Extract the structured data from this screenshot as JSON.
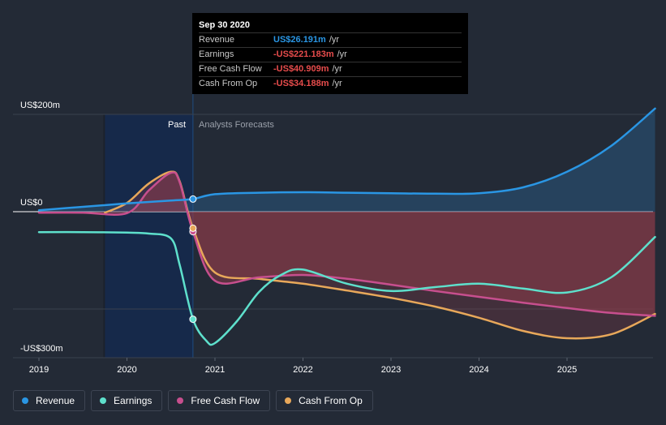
{
  "tooltip": {
    "date": "Sep 30 2020",
    "rows": [
      {
        "label": "Revenue",
        "value": "US$26.191m",
        "unit": "/yr",
        "color": "#2a96e4"
      },
      {
        "label": "Earnings",
        "value": "-US$221.183m",
        "unit": "/yr",
        "color": "#e74c4c"
      },
      {
        "label": "Free Cash Flow",
        "value": "-US$40.909m",
        "unit": "/yr",
        "color": "#e74c4c"
      },
      {
        "label": "Cash From Op",
        "value": "-US$34.188m",
        "unit": "/yr",
        "color": "#e74c4c"
      }
    ]
  },
  "chart_data": {
    "type": "line",
    "y_axis_labels": {
      "top": "US$200m",
      "zero": "US$0",
      "bottom": "-US$300m"
    },
    "ylim": [
      -300,
      200
    ],
    "xlim": [
      2019,
      2026
    ],
    "x_ticks": [
      "2019",
      "2020",
      "2021",
      "2022",
      "2023",
      "2024",
      "2025"
    ],
    "periods": {
      "past": "Past",
      "forecast": "Analysts Forecasts",
      "divider_x": 2020.75
    },
    "series": [
      {
        "name": "Revenue",
        "color": "#2a96e4",
        "x": [
          2019.0,
          2019.5,
          2020.0,
          2020.5,
          2020.75,
          2021.0,
          2021.5,
          2022.0,
          2022.5,
          2023.0,
          2023.5,
          2024.0,
          2024.5,
          2025.0,
          2025.5,
          2026.0
        ],
        "y": [
          3,
          10,
          17,
          23,
          26,
          36,
          39,
          40,
          39,
          38,
          37,
          38,
          50,
          82,
          135,
          212
        ]
      },
      {
        "name": "Earnings",
        "color": "#5ee0cc",
        "x": [
          2019.0,
          2019.5,
          2020.0,
          2020.25,
          2020.5,
          2020.6,
          2020.75,
          2020.9,
          2021.0,
          2021.25,
          2021.5,
          2021.75,
          2022.0,
          2022.5,
          2023.0,
          2023.5,
          2024.0,
          2024.5,
          2025.0,
          2025.5,
          2026.0
        ],
        "y": [
          -42,
          -42,
          -43,
          -45,
          -55,
          -110,
          -221,
          -265,
          -270,
          -225,
          -165,
          -130,
          -119,
          -148,
          -163,
          -155,
          -148,
          -158,
          -166,
          -135,
          -52
        ]
      },
      {
        "name": "Free Cash Flow",
        "color": "#c74f8e",
        "x": [
          2019.0,
          2019.5,
          2020.0,
          2020.25,
          2020.5,
          2020.6,
          2020.75,
          2021.0,
          2021.5,
          2022.0,
          2022.5,
          2023.0,
          2023.5,
          2024.0,
          2024.5,
          2025.0,
          2025.5,
          2026.0
        ],
        "y": [
          -2,
          -2,
          -3,
          44,
          80,
          60,
          -41,
          -142,
          -135,
          -130,
          -138,
          -150,
          -163,
          -175,
          -187,
          -198,
          -208,
          -214
        ]
      },
      {
        "name": "Cash From Op",
        "color": "#e8a85a",
        "x": [
          2019.75,
          2020.0,
          2020.25,
          2020.5,
          2020.6,
          2020.75,
          2021.0,
          2021.5,
          2022.0,
          2022.5,
          2023.0,
          2023.5,
          2024.0,
          2024.5,
          2025.0,
          2025.5,
          2026.0
        ],
        "y": [
          -2,
          18,
          58,
          82,
          62,
          -34,
          -125,
          -138,
          -148,
          -162,
          -177,
          -195,
          -218,
          -245,
          -260,
          -252,
          -210
        ]
      }
    ],
    "highlight_points": [
      {
        "series": "Revenue",
        "x": 2020.75,
        "y": 26
      },
      {
        "series": "Earnings",
        "x": 2020.75,
        "y": -221
      },
      {
        "series": "Free Cash Flow",
        "x": 2020.75,
        "y": -41
      },
      {
        "series": "Cash From Op",
        "x": 2020.75,
        "y": -34
      }
    ]
  },
  "legend": [
    {
      "label": "Revenue",
      "color": "#2a96e4"
    },
    {
      "label": "Earnings",
      "color": "#5ee0cc"
    },
    {
      "label": "Free Cash Flow",
      "color": "#c74f8e"
    },
    {
      "label": "Cash From Op",
      "color": "#e8a85a"
    }
  ]
}
